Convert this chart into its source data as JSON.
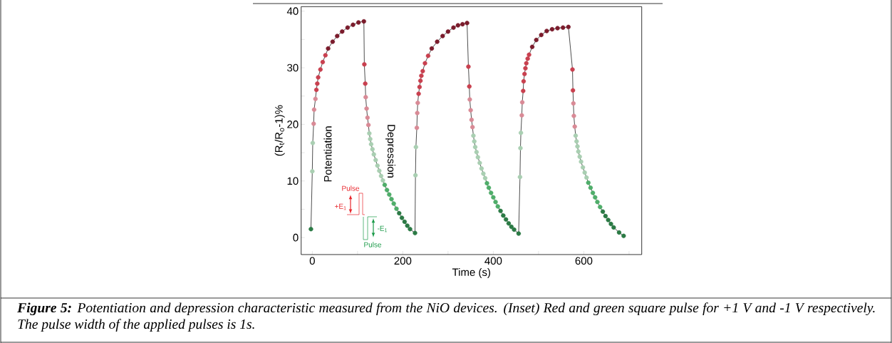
{
  "chart_data": {
    "type": "line",
    "xlabel": "Time (s)",
    "ylabel": "(R$_{t}$/R$_{o}$-1)%",
    "xlim": [
      -24.6,
      728
    ],
    "ylim": [
      -3,
      40.8
    ],
    "xticks": [
      0,
      {
        "value": 100,
        "label": null
      },
      200,
      {
        "value": 300,
        "label": null
      },
      400,
      {
        "value": 500,
        "label": null
      },
      600,
      {
        "value": 700,
        "label": null
      }
    ],
    "yticks": [
      0,
      {
        "value": 5,
        "label": null
      },
      10,
      {
        "value": 15,
        "label": null
      },
      20,
      {
        "value": 25,
        "label": null
      },
      30,
      {
        "value": 35,
        "label": null
      },
      40
    ],
    "marker": "circle",
    "line_style": "solid",
    "annotations": [
      "**Figure 5:** Potentiation and depression characteristic measured from the NiO devices. (Inset) Red and green square pulse for +1 V and -1 V respectively. The pulse width of the applied pulses is 1s.",
      "Potentiation",
      "Depression",
      "Pulse",
      "+E$_{1}$",
      "-E$_{1}$",
      "Pulse"
    ],
    "series": [
      {
        "color": "#000000",
        "x": [
          -3,
          0,
          1,
          3,
          4,
          7,
          9,
          11,
          13,
          18,
          23,
          29,
          35,
          45,
          55,
          66,
          78,
          90,
          102,
          114,
          115,
          117,
          118,
          120,
          122,
          124,
          126,
          128,
          130,
          133,
          136,
          140,
          144,
          148,
          152,
          156,
          160,
          165,
          170,
          175,
          180,
          186,
          192,
          198,
          204,
          210,
          216,
          227,
          228,
          229,
          231,
          232,
          233,
          235,
          237,
          239,
          241,
          244,
          249,
          256,
          264,
          276,
          288,
          300,
          312,
          322,
          332,
          342,
          345,
          347,
          348,
          350,
          352,
          354,
          356,
          358,
          360,
          363,
          366,
          370,
          374,
          378,
          382,
          386,
          390,
          395,
          400,
          405,
          410,
          416,
          422,
          428,
          434,
          440,
          446,
          456,
          459,
          460,
          461,
          463,
          464,
          466,
          467,
          469,
          471,
          473,
          476,
          479,
          486,
          495,
          506,
          518,
          530,
          542,
          554,
          566,
          575,
          576,
          577,
          578,
          580,
          582,
          584,
          586,
          588,
          591,
          594,
          598,
          602,
          606,
          610,
          615,
          620,
          625,
          630,
          636,
          642,
          648,
          654,
          660,
          666,
          678,
          688
        ],
        "values": [
          1.5,
          11.7,
          16.7,
          20.1,
          22.6,
          24.5,
          26.1,
          27.2,
          28.3,
          29.7,
          31.0,
          32.2,
          33.4,
          34.6,
          35.6,
          36.4,
          37.1,
          37.6,
          38.0,
          38.2,
          30.6,
          27.2,
          24.8,
          22.8,
          21.2,
          19.9,
          18.4,
          17.4,
          16.5,
          15.6,
          14.7,
          13.7,
          12.7,
          11.8,
          10.9,
          10.1,
          9.3,
          8.4,
          7.6,
          6.8,
          6.0,
          5.1,
          4.3,
          3.5,
          2.8,
          2.1,
          1.5,
          0.8,
          11.0,
          16.0,
          19.4,
          22.0,
          23.8,
          25.4,
          26.6,
          27.7,
          28.6,
          29.4,
          30.8,
          32.1,
          33.4,
          34.6,
          35.6,
          36.4,
          37.1,
          37.5,
          37.7,
          37.9,
          30.2,
          26.7,
          24.4,
          22.5,
          20.8,
          19.5,
          18.0,
          17.0,
          16.0,
          15.1,
          14.2,
          13.2,
          12.2,
          11.3,
          10.5,
          9.6,
          8.8,
          7.9,
          7.1,
          6.3,
          5.5,
          4.7,
          3.9,
          3.2,
          2.5,
          1.9,
          1.4,
          0.7,
          10.7,
          15.8,
          18.5,
          21.6,
          23.9,
          25.9,
          27.6,
          28.9,
          29.9,
          30.8,
          31.6,
          32.3,
          33.7,
          34.9,
          35.8,
          36.5,
          36.8,
          37.0,
          37.1,
          37.2,
          29.7,
          26.0,
          23.7,
          21.5,
          19.6,
          18.0,
          17.0,
          16.1,
          15.2,
          14.3,
          13.4,
          12.4,
          11.5,
          10.6,
          9.7,
          8.8,
          7.9,
          7.1,
          6.3,
          5.4,
          4.6,
          3.8,
          3.1,
          2.4,
          1.8,
          0.9,
          0.3
        ],
        "colors": [
          "#2b7a45",
          "#a9cfb2",
          "#a9cfb2",
          "#d98a96",
          "#d98a96",
          "#d98a96",
          "#c9404f",
          "#c9404f",
          "#c9404f",
          "#c9404f",
          "#c9404f",
          "#c9404f",
          "#7b1c2c",
          "#7b1c2c",
          "#7b1c2c",
          "#7b1c2c",
          "#7b1c2c",
          "#7b1c2c",
          "#7b1c2c",
          "#7b1c2c",
          "#c9404f",
          "#c9404f",
          "#d98a96",
          "#d98a96",
          "#d98a96",
          "#d98a96",
          "#a9cfb2",
          "#a9cfb2",
          "#a9cfb2",
          "#a9cfb2",
          "#a9cfb2",
          "#a9cfb2",
          "#a9cfb2",
          "#a9cfb2",
          "#a9cfb2",
          "#a9cfb2",
          "#4fae6a",
          "#4fae6a",
          "#4fae6a",
          "#4fae6a",
          "#4fae6a",
          "#4fae6a",
          "#2b7a45",
          "#2b7a45",
          "#2b7a45",
          "#2b7a45",
          "#2b7a45",
          "#2b7a45",
          "#a9cfb2",
          "#a9cfb2",
          "#d98a96",
          "#d98a96",
          "#d98a96",
          "#c9404f",
          "#c9404f",
          "#c9404f",
          "#c9404f",
          "#c9404f",
          "#c9404f",
          "#c9404f",
          "#7b1c2c",
          "#7b1c2c",
          "#7b1c2c",
          "#7b1c2c",
          "#7b1c2c",
          "#7b1c2c",
          "#7b1c2c",
          "#7b1c2c",
          "#c9404f",
          "#c9404f",
          "#d98a96",
          "#d98a96",
          "#d98a96",
          "#d98a96",
          "#a9cfb2",
          "#a9cfb2",
          "#a9cfb2",
          "#a9cfb2",
          "#a9cfb2",
          "#a9cfb2",
          "#a9cfb2",
          "#a9cfb2",
          "#a9cfb2",
          "#4fae6a",
          "#4fae6a",
          "#4fae6a",
          "#4fae6a",
          "#4fae6a",
          "#4fae6a",
          "#2b7a45",
          "#2b7a45",
          "#2b7a45",
          "#2b7a45",
          "#2b7a45",
          "#2b7a45",
          "#2b7a45",
          "#a9cfb2",
          "#a9cfb2",
          "#a9cfb2",
          "#d98a96",
          "#d98a96",
          "#c9404f",
          "#c9404f",
          "#c9404f",
          "#c9404f",
          "#c9404f",
          "#c9404f",
          "#c9404f",
          "#7b1c2c",
          "#7b1c2c",
          "#7b1c2c",
          "#7b1c2c",
          "#7b1c2c",
          "#7b1c2c",
          "#7b1c2c",
          "#7b1c2c",
          "#c9404f",
          "#c9404f",
          "#d98a96",
          "#d98a96",
          "#d98a96",
          "#a9cfb2",
          "#a9cfb2",
          "#a9cfb2",
          "#a9cfb2",
          "#a9cfb2",
          "#a9cfb2",
          "#a9cfb2",
          "#a9cfb2",
          "#a9cfb2",
          "#4fae6a",
          "#4fae6a",
          "#4fae6a",
          "#4fae6a",
          "#4fae6a",
          "#4fae6a",
          "#2b7a45",
          "#2b7a45",
          "#2b7a45",
          "#2b7a45",
          "#2b7a45",
          "#2b7a45",
          "#2b7a45"
        ]
      }
    ]
  }
}
